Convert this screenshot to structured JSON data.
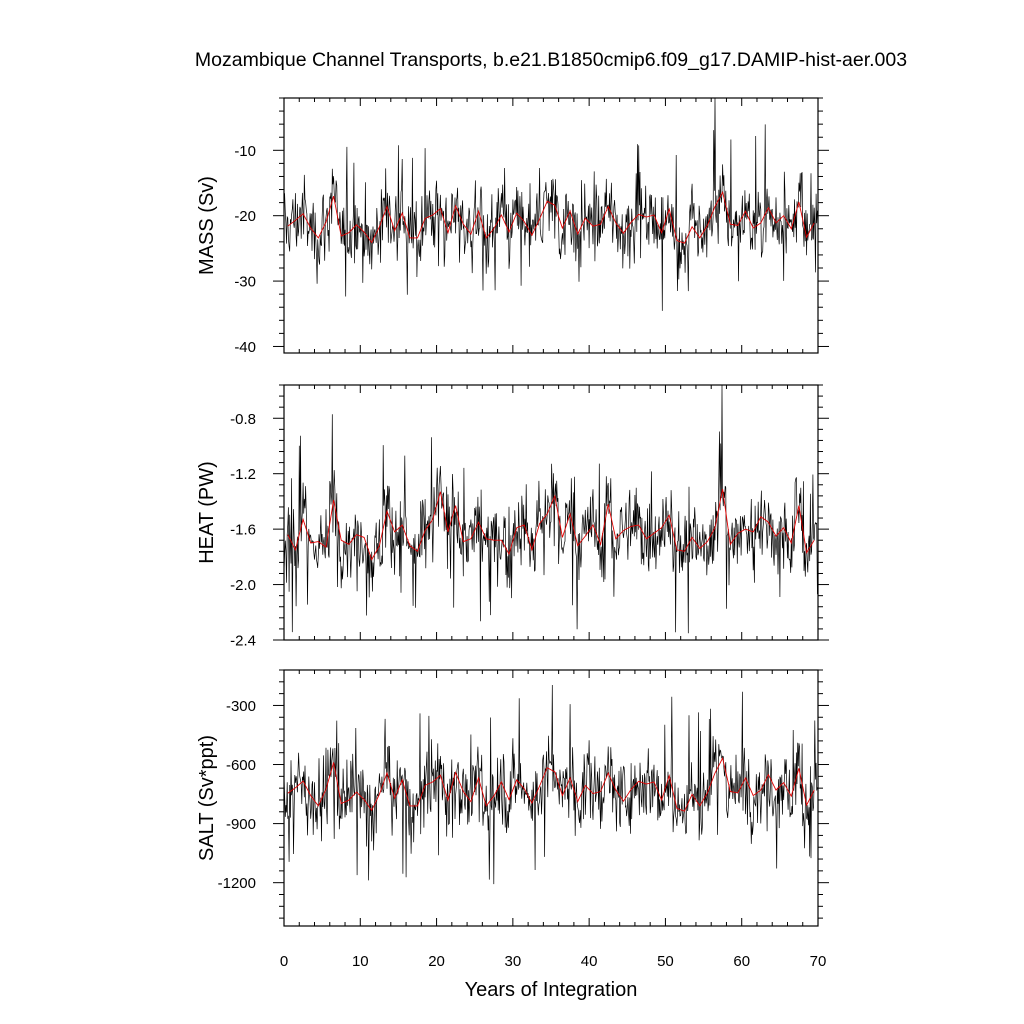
{
  "figure": {
    "title": "Mozambique Channel Transports, b.e21.B1850cmip6.f09_g17.DAMIP-hist-aer.003",
    "xlabel": "Years of Integration"
  },
  "chart_data": [
    {
      "type": "line",
      "ylabel": "MASS (Sv)",
      "xlim": [
        0,
        70
      ],
      "ylim": [
        -41,
        -2
      ],
      "yticks": [
        -10,
        -20,
        -30,
        -40
      ],
      "ytick_labels": [
        "-10",
        "-20",
        "-30",
        "-40"
      ],
      "xticks": [
        0,
        10,
        20,
        30,
        40,
        50,
        60,
        70
      ],
      "xtick_labels": [],
      "colors": {
        "monthly": "#000000",
        "annual": "#e00000"
      },
      "annual_mean": [
        -21.6,
        -20.7,
        -19.7,
        -21.9,
        -23.4,
        -21.0,
        -17.0,
        -23.1,
        -22.6,
        -21.4,
        -22.5,
        -24.1,
        -21.7,
        -18.6,
        -22.3,
        -19.6,
        -23.4,
        -23.4,
        -20.4,
        -19.9,
        -18.9,
        -22.6,
        -18.5,
        -21.3,
        -22.8,
        -19.3,
        -23.4,
        -22.0,
        -19.9,
        -22.5,
        -19.6,
        -20.9,
        -23.0,
        -20.5,
        -17.8,
        -18.4,
        -21.9,
        -19.3,
        -22.8,
        -20.4,
        -21.6,
        -21.3,
        -18.6,
        -21.1,
        -22.7,
        -21.0,
        -19.8,
        -20.2,
        -19.9,
        -22.6,
        -19.0,
        -23.8,
        -24.2,
        -21.7,
        -23.4,
        -21.5,
        -18.6,
        -16.4,
        -21.3,
        -21.5,
        -19.3,
        -21.9,
        -21.1,
        -18.8,
        -21.1,
        -20.0,
        -22.0,
        -17.9,
        -23.3,
        -21.1
      ]
    },
    {
      "type": "line",
      "ylabel": "HEAT (PW)",
      "xlim": [
        0,
        70
      ],
      "ylim": [
        -2.4,
        -0.56
      ],
      "yticks": [
        -0.8,
        -1.2,
        -1.6,
        -2.0,
        -2.4
      ],
      "ytick_labels": [
        "-0.8",
        "-1.2",
        "-1.6",
        "-2.0",
        "-2.4"
      ],
      "xticks": [
        0,
        10,
        20,
        30,
        40,
        50,
        60,
        70
      ],
      "xtick_labels": [],
      "colors": {
        "monthly": "#000000",
        "annual": "#e00000"
      },
      "annual_mean": [
        -1.64,
        -1.75,
        -1.53,
        -1.7,
        -1.69,
        -1.73,
        -1.39,
        -1.68,
        -1.71,
        -1.64,
        -1.66,
        -1.82,
        -1.72,
        -1.47,
        -1.62,
        -1.57,
        -1.72,
        -1.76,
        -1.61,
        -1.53,
        -1.33,
        -1.62,
        -1.43,
        -1.69,
        -1.67,
        -1.55,
        -1.67,
        -1.68,
        -1.68,
        -1.78,
        -1.59,
        -1.57,
        -1.75,
        -1.56,
        -1.49,
        -1.36,
        -1.66,
        -1.49,
        -1.72,
        -1.65,
        -1.57,
        -1.71,
        -1.42,
        -1.67,
        -1.61,
        -1.58,
        -1.57,
        -1.67,
        -1.63,
        -1.59,
        -1.5,
        -1.75,
        -1.76,
        -1.66,
        -1.74,
        -1.69,
        -1.59,
        -1.31,
        -1.71,
        -1.63,
        -1.6,
        -1.62,
        -1.51,
        -1.55,
        -1.65,
        -1.59,
        -1.7,
        -1.43,
        -1.77,
        -1.68
      ]
    },
    {
      "type": "line",
      "ylabel": "SALT (Sv*ppt)",
      "xlim": [
        0,
        70
      ],
      "ylim": [
        -1420,
        -120
      ],
      "yticks": [
        -300,
        -600,
        -900,
        -1200
      ],
      "ytick_labels": [
        "-300",
        "-600",
        "-900",
        "-1200"
      ],
      "xticks": [
        0,
        10,
        20,
        30,
        40,
        50,
        60,
        70
      ],
      "xtick_labels": [
        "0",
        "10",
        "20",
        "30",
        "40",
        "50",
        "60",
        "70"
      ],
      "colors": {
        "monthly": "#000000",
        "annual": "#e00000"
      },
      "annual_mean": [
        -746,
        -718,
        -684,
        -758,
        -810,
        -726,
        -589,
        -798,
        -781,
        -740,
        -778,
        -833,
        -751,
        -643,
        -771,
        -678,
        -810,
        -810,
        -706,
        -688,
        -654,
        -781,
        -640,
        -737,
        -789,
        -668,
        -810,
        -761,
        -688,
        -778,
        -678,
        -723,
        -796,
        -709,
        -616,
        -637,
        -758,
        -668,
        -789,
        -706,
        -747,
        -737,
        -643,
        -730,
        -786,
        -726,
        -685,
        -699,
        -688,
        -781,
        -657,
        -823,
        -837,
        -751,
        -810,
        -744,
        -643,
        -568,
        -737,
        -744,
        -668,
        -758,
        -730,
        -651,
        -730,
        -692,
        -761,
        -619,
        -806,
        -730
      ]
    }
  ]
}
